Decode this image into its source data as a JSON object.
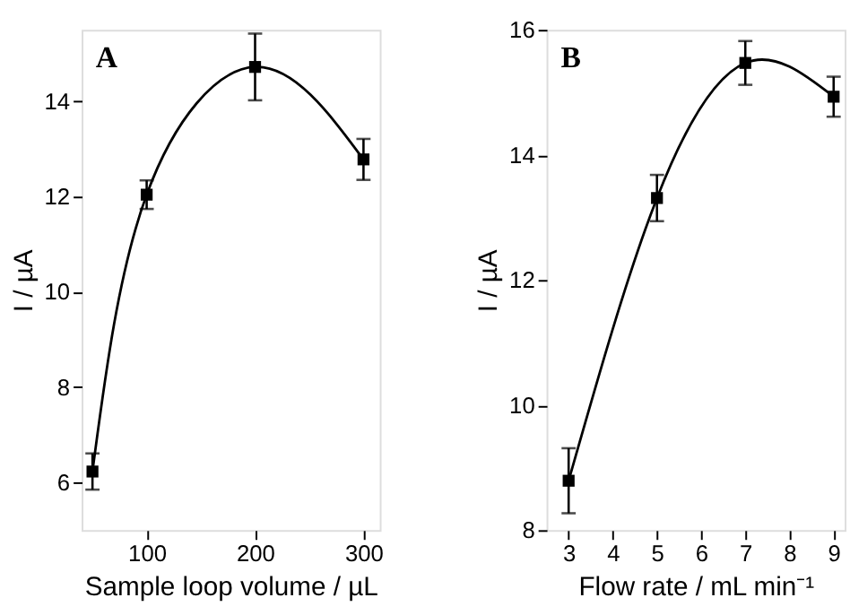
{
  "chart_data": [
    {
      "type": "line",
      "title": "A",
      "xlabel": "Sample loop volume / µL",
      "ylabel": "I / µA",
      "x": [
        50,
        100,
        200,
        300
      ],
      "series": [
        {
          "color": "#000000",
          "values": [
            6.23,
            12.04,
            14.72,
            12.78
          ],
          "errors": [
            0.38,
            0.3,
            0.7,
            0.43
          ]
        }
      ],
      "marker": "square",
      "line_style": "solid",
      "grid": false,
      "xlim": [
        40,
        315
      ],
      "xticks": [
        100,
        200,
        300
      ],
      "ylim": [
        5,
        15.5
      ],
      "yticks": [
        6,
        8,
        10,
        12,
        14
      ]
    },
    {
      "type": "line",
      "title": "B",
      "xlabel": "Flow rate / mL min⁻¹",
      "ylabel": "I / µA",
      "x": [
        3,
        5,
        7,
        9
      ],
      "series": [
        {
          "color": "#000000",
          "values": [
            8.79,
            13.31,
            15.47,
            14.93
          ],
          "errors": [
            0.52,
            0.37,
            0.35,
            0.32
          ]
        }
      ],
      "marker": "square",
      "line_style": "solid",
      "grid": false,
      "xlim": [
        2.5,
        9.25
      ],
      "xticks": [
        3,
        4,
        5,
        6,
        7,
        8,
        9
      ],
      "ylim": [
        8,
        16
      ],
      "yticks": [
        8,
        10,
        12,
        14,
        16
      ]
    }
  ]
}
